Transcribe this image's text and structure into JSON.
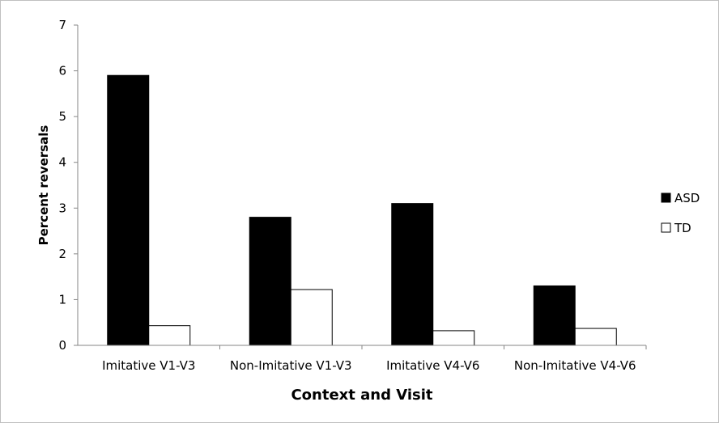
{
  "chart_data": {
    "type": "bar",
    "categories": [
      "Imitative V1-V3",
      "Non-Imitative V1-V3",
      "Imitative V4-V6",
      "Non-Imitative V4-V6"
    ],
    "series": [
      {
        "name": "ASD",
        "values": [
          5.9,
          2.8,
          3.1,
          1.3
        ],
        "color": "#000000"
      },
      {
        "name": "TD",
        "values": [
          0.43,
          1.22,
          0.32,
          0.37
        ],
        "color": "#ffffff"
      }
    ],
    "title": "",
    "xlabel": "Context and Visit",
    "ylabel": "Percent reversals",
    "ylim": [
      0,
      7
    ],
    "yticks": [
      "0",
      "1",
      "2",
      "3",
      "4",
      "5",
      "6",
      "7"
    ],
    "grid": false,
    "legend_position": "right"
  }
}
